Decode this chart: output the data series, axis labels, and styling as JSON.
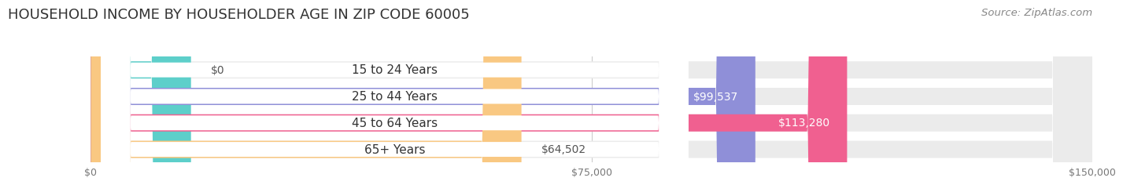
{
  "title": "HOUSEHOLD INCOME BY HOUSEHOLDER AGE IN ZIP CODE 60005",
  "source": "Source: ZipAtlas.com",
  "categories": [
    "15 to 24 Years",
    "25 to 44 Years",
    "45 to 64 Years",
    "65+ Years"
  ],
  "values": [
    0,
    99537,
    113280,
    64502
  ],
  "bar_colors": [
    "#5dcfca",
    "#8f8fd8",
    "#f06090",
    "#f9c882"
  ],
  "bar_bg_color": "#ebebeb",
  "value_labels": [
    "$0",
    "$99,537",
    "$113,280",
    "$64,502"
  ],
  "x_ticks": [
    0,
    75000,
    150000
  ],
  "x_tick_labels": [
    "$0",
    "$75,000",
    "$150,000"
  ],
  "xlim": [
    0,
    150000
  ],
  "fig_bg_color": "#ffffff",
  "title_fontsize": 13,
  "source_fontsize": 9.5,
  "cat_label_fontsize": 11,
  "value_fontsize": 10
}
